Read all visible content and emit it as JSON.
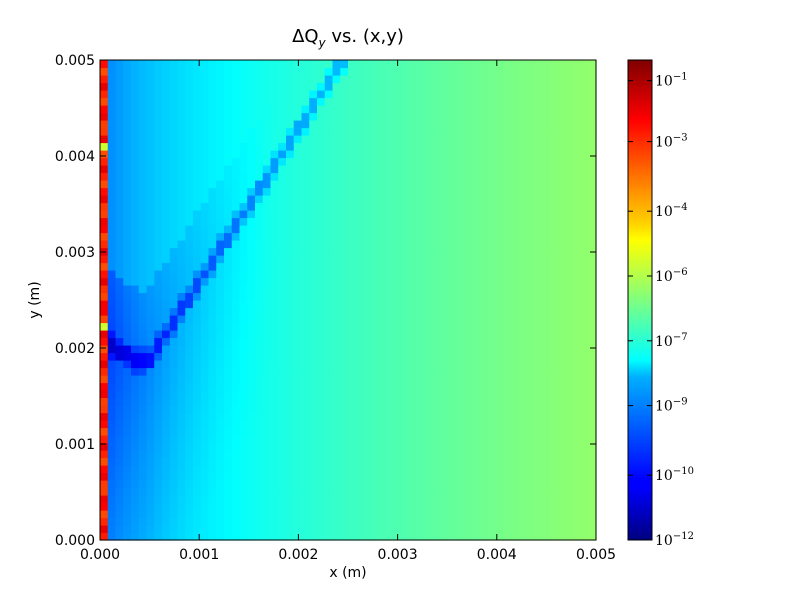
{
  "chart_data": {
    "type": "heatmap",
    "title_prefix": "ΔQ",
    "title_subscript": "y",
    "title_suffix": " vs. (x,y)",
    "xlabel": "x (m)",
    "ylabel": "y (m)",
    "xlim": [
      0.0,
      0.005
    ],
    "ylim": [
      0.0,
      0.005
    ],
    "x_ticks": [
      "0.000",
      "0.001",
      "0.002",
      "0.003",
      "0.004",
      "0.005"
    ],
    "y_ticks": [
      "0.000",
      "0.001",
      "0.002",
      "0.003",
      "0.004",
      "0.005"
    ],
    "colorbar": {
      "scale": "log",
      "colormap": "jet",
      "range": [
        1e-12,
        0.3
      ],
      "ticks": [
        {
          "base": "10",
          "exp": "−1",
          "value": 0.1
        },
        {
          "base": "10",
          "exp": "−3",
          "value": 0.001
        },
        {
          "base": "10",
          "exp": "−4",
          "value": 0.0001
        },
        {
          "base": "10",
          "exp": "−6",
          "value": 1e-06
        },
        {
          "base": "10",
          "exp": "−7",
          "value": 1e-07
        },
        {
          "base": "10",
          "exp": "−9",
          "value": 1e-09
        },
        {
          "base": "10",
          "exp": "−10",
          "value": 1e-10
        },
        {
          "base": "10",
          "exp": "−12",
          "value": 1e-12
        }
      ],
      "tick_positions_colorbar_fraction": [
        0.957,
        0.83,
        0.685,
        0.55,
        0.415,
        0.28,
        0.135,
        0.0
      ]
    },
    "grid": false,
    "field_description": {
      "left_column_values": "high (~1e-3 to 1e-2), with sparse cells near 1e-6 at y≈0.0022 and y≈0.0044",
      "minimum_curve": "dark blue valley (~1e-11) from (0.0002, 0.00205) through minimum near (0.0005, 0.00185) then rising diagonally to (0.0025, 0.005)",
      "background_gradient": "from ~1e-10 near x=0 to ~2e-7 near x=0.005"
    }
  }
}
